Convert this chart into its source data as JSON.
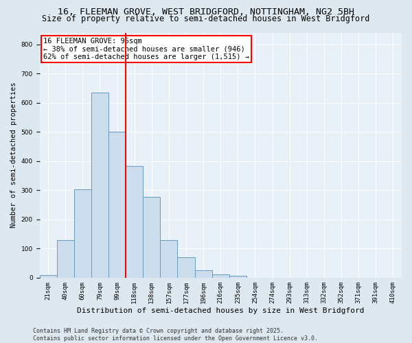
{
  "title1": "16, FLEEMAN GROVE, WEST BRIDGFORD, NOTTINGHAM, NG2 5BH",
  "title2": "Size of property relative to semi-detached houses in West Bridgford",
  "xlabel": "Distribution of semi-detached houses by size in West Bridgford",
  "ylabel": "Number of semi-detached properties",
  "bar_labels": [
    "21sqm",
    "40sqm",
    "60sqm",
    "79sqm",
    "99sqm",
    "118sqm",
    "138sqm",
    "157sqm",
    "177sqm",
    "196sqm",
    "216sqm",
    "235sqm",
    "254sqm",
    "274sqm",
    "293sqm",
    "313sqm",
    "332sqm",
    "352sqm",
    "371sqm",
    "391sqm",
    "410sqm"
  ],
  "bar_values": [
    8,
    128,
    302,
    635,
    500,
    383,
    278,
    130,
    70,
    25,
    12,
    7,
    0,
    0,
    0,
    0,
    0,
    0,
    0,
    0,
    0
  ],
  "bar_color": "#ccdded",
  "bar_edge_color": "#6699bb",
  "vline_x_index": 4,
  "vline_color": "red",
  "annotation_text": "16 FLEEMAN GROVE: 95sqm\n← 38% of semi-detached houses are smaller (946)\n62% of semi-detached houses are larger (1,515) →",
  "ylim": [
    0,
    840
  ],
  "yticks": [
    0,
    100,
    200,
    300,
    400,
    500,
    600,
    700,
    800
  ],
  "bg_color": "#dde8f0",
  "plot_bg_color": "#e8f0f8",
  "footer": "Contains HM Land Registry data © Crown copyright and database right 2025.\nContains public sector information licensed under the Open Government Licence v3.0.",
  "title1_fontsize": 9.5,
  "title2_fontsize": 8.5,
  "xlabel_fontsize": 8,
  "ylabel_fontsize": 7.5,
  "tick_fontsize": 6.5,
  "annotation_fontsize": 7.5,
  "footer_fontsize": 6
}
